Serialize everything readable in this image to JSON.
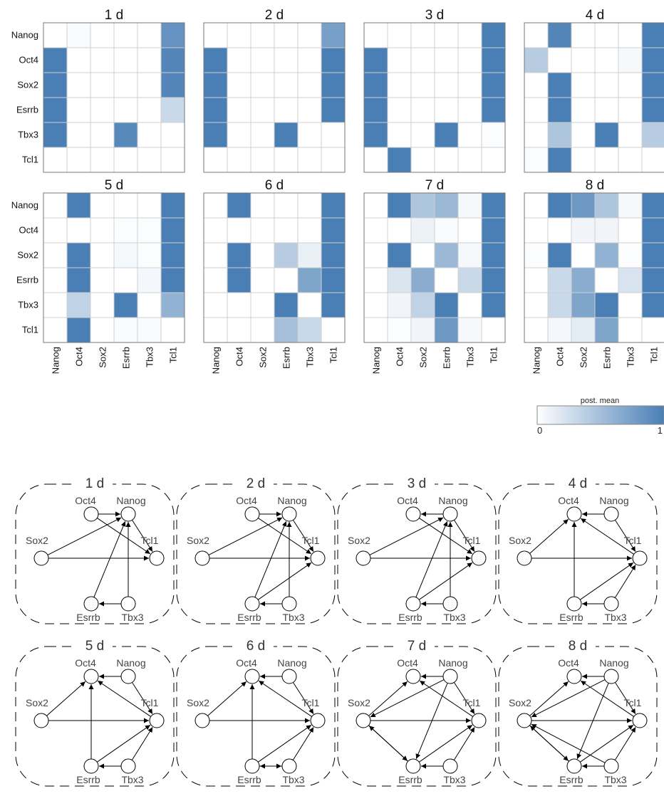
{
  "chart_data": [
    {
      "type": "heatmap",
      "genes": [
        "Nanog",
        "Oct4",
        "Sox2",
        "Esrrb",
        "Tbx3",
        "Tcl1"
      ],
      "color_scale": {
        "low": "#ffffff",
        "high": "#4a7fb5",
        "title": "post. mean",
        "min_label": "0",
        "max_label": "1",
        "range": [
          0,
          1
        ]
      },
      "panels": [
        {
          "title": "1 d",
          "values": [
            [
              0,
              0.03,
              0,
              0,
              0,
              0.85
            ],
            [
              1,
              0,
              0,
              0,
              0,
              0.95
            ],
            [
              1,
              0,
              0,
              0,
              0,
              0.95
            ],
            [
              1,
              0,
              0,
              0,
              0,
              0.3
            ],
            [
              1,
              0,
              0,
              0.92,
              0,
              0
            ],
            [
              0,
              0,
              0,
              0,
              0,
              0
            ]
          ]
        },
        {
          "title": "2 d",
          "values": [
            [
              0,
              0,
              0,
              0,
              0,
              0.75
            ],
            [
              1,
              0,
              0,
              0,
              0,
              1
            ],
            [
              1,
              0,
              0,
              0,
              0,
              1
            ],
            [
              1,
              0,
              0,
              0,
              0,
              1
            ],
            [
              1,
              0,
              0,
              1,
              0,
              0
            ],
            [
              0,
              0,
              0,
              0,
              0,
              0
            ]
          ]
        },
        {
          "title": "3 d",
          "values": [
            [
              0,
              0,
              0,
              0,
              0,
              1
            ],
            [
              1,
              0,
              0,
              0,
              0,
              1
            ],
            [
              1,
              0,
              0,
              0,
              0,
              1
            ],
            [
              1,
              0,
              0,
              0,
              0,
              1
            ],
            [
              1,
              0,
              0,
              1,
              0,
              0.02
            ],
            [
              0,
              1,
              0,
              0,
              0,
              0
            ]
          ]
        },
        {
          "title": "4 d",
          "values": [
            [
              0,
              0.95,
              0,
              0,
              0,
              1
            ],
            [
              0.4,
              0,
              0,
              0,
              0.05,
              1
            ],
            [
              0,
              1,
              0,
              0,
              0,
              1
            ],
            [
              0,
              1,
              0,
              0,
              0,
              1
            ],
            [
              0,
              0.45,
              0,
              1,
              0,
              0.4
            ],
            [
              0.02,
              1,
              0,
              0,
              0,
              0
            ]
          ]
        },
        {
          "title": "5 d",
          "values": [
            [
              0,
              1,
              0,
              0,
              0,
              1
            ],
            [
              0,
              0,
              0,
              0.02,
              0.02,
              1
            ],
            [
              0,
              1,
              0,
              0.05,
              0.02,
              1
            ],
            [
              0,
              1,
              0,
              0,
              0.06,
              1
            ],
            [
              0,
              0.35,
              0,
              1,
              0,
              0.6
            ],
            [
              0,
              1,
              0,
              0.03,
              0.03,
              0
            ]
          ]
        },
        {
          "title": "6 d",
          "values": [
            [
              0,
              1,
              0,
              0,
              0,
              1
            ],
            [
              0,
              0,
              0,
              0,
              0,
              1
            ],
            [
              0,
              1,
              0,
              0.4,
              0.12,
              1
            ],
            [
              0,
              1,
              0,
              0,
              0.7,
              1
            ],
            [
              0,
              0,
              0,
              1,
              0,
              1
            ],
            [
              0,
              0,
              0,
              0.5,
              0.3,
              0
            ]
          ]
        },
        {
          "title": "7 d",
          "values": [
            [
              0,
              1,
              0.45,
              0.55,
              0.05,
              1
            ],
            [
              0,
              0,
              0.1,
              0.03,
              0,
              1
            ],
            [
              0,
              1,
              0,
              0.55,
              0.05,
              1
            ],
            [
              0,
              0.2,
              0.65,
              0,
              0.3,
              1
            ],
            [
              0,
              0.08,
              0.35,
              1,
              0,
              1
            ],
            [
              0,
              0.02,
              0.08,
              0.8,
              0.05,
              0
            ]
          ]
        },
        {
          "title": "8 d",
          "values": [
            [
              0,
              1,
              0.8,
              0.45,
              0.05,
              1
            ],
            [
              0,
              0,
              0.08,
              0.08,
              0,
              1
            ],
            [
              0.02,
              1,
              0,
              0.6,
              0.02,
              1
            ],
            [
              0,
              0.3,
              0.65,
              0,
              0.22,
              1
            ],
            [
              0,
              0.3,
              0.7,
              1,
              0,
              1
            ],
            [
              0,
              0.06,
              0.15,
              0.7,
              0,
              0
            ]
          ]
        }
      ]
    },
    {
      "type": "network",
      "nodes": [
        "Oct4",
        "Nanog",
        "Sox2",
        "Tcl1",
        "Esrrb",
        "Tbx3"
      ],
      "panels": [
        {
          "title": "1 d",
          "edges": [
            [
              "Oct4",
              "Nanog"
            ],
            [
              "Oct4",
              "Tcl1"
            ],
            [
              "Sox2",
              "Nanog"
            ],
            [
              "Sox2",
              "Tcl1"
            ],
            [
              "Esrrb",
              "Nanog"
            ],
            [
              "Tbx3",
              "Esrrb"
            ],
            [
              "Tbx3",
              "Nanog"
            ],
            [
              "Nanog",
              "Tcl1"
            ]
          ]
        },
        {
          "title": "2 d",
          "edges": [
            [
              "Oct4",
              "Nanog"
            ],
            [
              "Oct4",
              "Tcl1"
            ],
            [
              "Sox2",
              "Nanog"
            ],
            [
              "Sox2",
              "Tcl1"
            ],
            [
              "Esrrb",
              "Nanog"
            ],
            [
              "Esrrb",
              "Tcl1"
            ],
            [
              "Tbx3",
              "Esrrb"
            ],
            [
              "Tbx3",
              "Nanog"
            ],
            [
              "Nanog",
              "Tcl1"
            ]
          ]
        },
        {
          "title": "3 d",
          "edges": [
            [
              "Nanog",
              "Oct4"
            ],
            [
              "Oct4",
              "Tcl1"
            ],
            [
              "Sox2",
              "Nanog"
            ],
            [
              "Sox2",
              "Tcl1"
            ],
            [
              "Esrrb",
              "Nanog"
            ],
            [
              "Esrrb",
              "Tcl1"
            ],
            [
              "Tbx3",
              "Esrrb"
            ],
            [
              "Tbx3",
              "Nanog"
            ],
            [
              "Nanog",
              "Tcl1"
            ]
          ]
        },
        {
          "title": "4 d",
          "edges": [
            [
              "Nanog",
              "Oct4"
            ],
            [
              "Tcl1",
              "Oct4"
            ],
            [
              "Sox2",
              "Oct4"
            ],
            [
              "Esrrb",
              "Oct4"
            ],
            [
              "Sox2",
              "Tcl1"
            ],
            [
              "Esrrb",
              "Tcl1"
            ],
            [
              "Tbx3",
              "Esrrb"
            ],
            [
              "Tbx3",
              "Tcl1"
            ],
            [
              "Nanog",
              "Tcl1"
            ]
          ]
        },
        {
          "title": "5 d",
          "edges": [
            [
              "Nanog",
              "Oct4"
            ],
            [
              "Tcl1",
              "Oct4"
            ],
            [
              "Sox2",
              "Oct4"
            ],
            [
              "Esrrb",
              "Oct4"
            ],
            [
              "Sox2",
              "Tcl1"
            ],
            [
              "Esrrb",
              "Tcl1"
            ],
            [
              "Tbx3",
              "Esrrb"
            ],
            [
              "Tbx3",
              "Tcl1"
            ],
            [
              "Nanog",
              "Tcl1"
            ]
          ]
        },
        {
          "title": "6 d",
          "edges": [
            [
              "Nanog",
              "Oct4"
            ],
            [
              "Tcl1",
              "Oct4"
            ],
            [
              "Sox2",
              "Oct4"
            ],
            [
              "Esrrb",
              "Oct4"
            ],
            [
              "Sox2",
              "Tcl1"
            ],
            [
              "Esrrb",
              "Tcl1"
            ],
            [
              "Tbx3",
              "Esrrb"
            ],
            [
              "Esrrb",
              "Tbx3"
            ],
            [
              "Tbx3",
              "Tcl1"
            ],
            [
              "Nanog",
              "Tcl1"
            ]
          ]
        },
        {
          "title": "7 d",
          "edges": [
            [
              "Nanog",
              "Oct4"
            ],
            [
              "Tcl1",
              "Oct4"
            ],
            [
              "Sox2",
              "Oct4"
            ],
            [
              "Nanog",
              "Sox2"
            ],
            [
              "Sox2",
              "Tcl1"
            ],
            [
              "Esrrb",
              "Tcl1"
            ],
            [
              "Nanog",
              "Esrrb"
            ],
            [
              "Sox2",
              "Esrrb"
            ],
            [
              "Esrrb",
              "Sox2"
            ],
            [
              "Tbx3",
              "Esrrb"
            ],
            [
              "Tbx3",
              "Tcl1"
            ],
            [
              "Nanog",
              "Tcl1"
            ]
          ]
        },
        {
          "title": "8 d",
          "edges": [
            [
              "Nanog",
              "Oct4"
            ],
            [
              "Tcl1",
              "Oct4"
            ],
            [
              "Sox2",
              "Oct4"
            ],
            [
              "Nanog",
              "Sox2"
            ],
            [
              "Tbx3",
              "Sox2"
            ],
            [
              "Sox2",
              "Tcl1"
            ],
            [
              "Esrrb",
              "Tcl1"
            ],
            [
              "Nanog",
              "Esrrb"
            ],
            [
              "Sox2",
              "Esrrb"
            ],
            [
              "Esrrb",
              "Sox2"
            ],
            [
              "Tbx3",
              "Esrrb"
            ],
            [
              "Tbx3",
              "Tcl1"
            ],
            [
              "Nanog",
              "Tcl1"
            ]
          ]
        }
      ]
    }
  ]
}
